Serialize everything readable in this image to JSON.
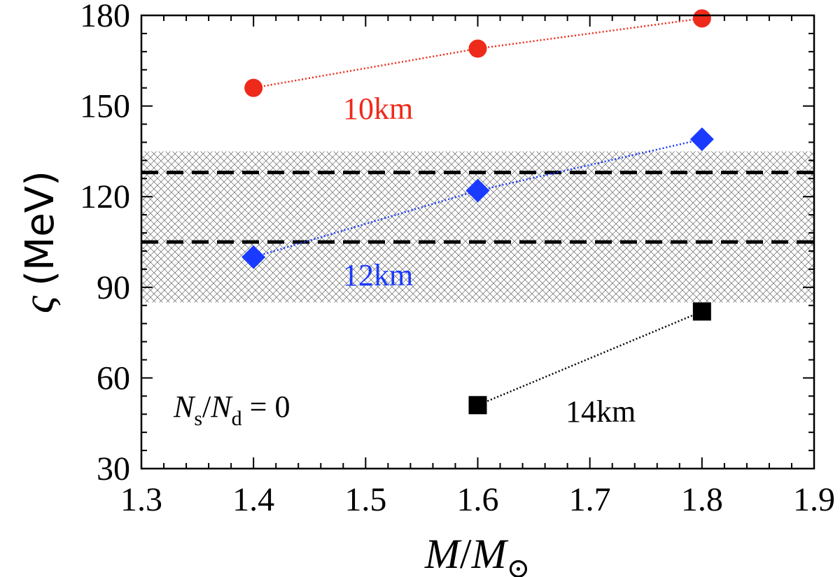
{
  "chart_data": {
    "type": "scatter",
    "title": "",
    "xlabel": {
      "main": "M",
      "slash": "/",
      "sub_main": "M",
      "sub": "⊙"
    },
    "ylabel": {
      "symbol": "ς",
      "unit": "(MeV)"
    },
    "xlim": [
      1.3,
      1.9
    ],
    "ylim": [
      30,
      180
    ],
    "xticks": [
      "1.3",
      "1.4",
      "1.5",
      "1.6",
      "1.7",
      "1.8",
      "1.9"
    ],
    "yticks": [
      "30",
      "60",
      "90",
      "120",
      "150",
      "180"
    ],
    "band": {
      "y": [
        85,
        135
      ],
      "pattern": "crosshatch"
    },
    "reference_lines": [
      128,
      105
    ],
    "annotation": {
      "n1": "N",
      "s1": "s",
      "slash": "/",
      "n2": "N",
      "s2": "d",
      "rest": " = 0"
    },
    "series": [
      {
        "name": "10km",
        "color": "#ee2a1a",
        "marker": "circle",
        "x": [
          1.4,
          1.6,
          1.8
        ],
        "y": [
          156,
          169,
          179
        ]
      },
      {
        "name": "12km",
        "color": "#1a3bff",
        "marker": "diamond",
        "x": [
          1.4,
          1.6,
          1.8
        ],
        "y": [
          100,
          122,
          139
        ]
      },
      {
        "name": "14km",
        "color": "#000000",
        "marker": "square",
        "x": [
          1.6,
          1.8
        ],
        "y": [
          51,
          82
        ]
      }
    ]
  }
}
